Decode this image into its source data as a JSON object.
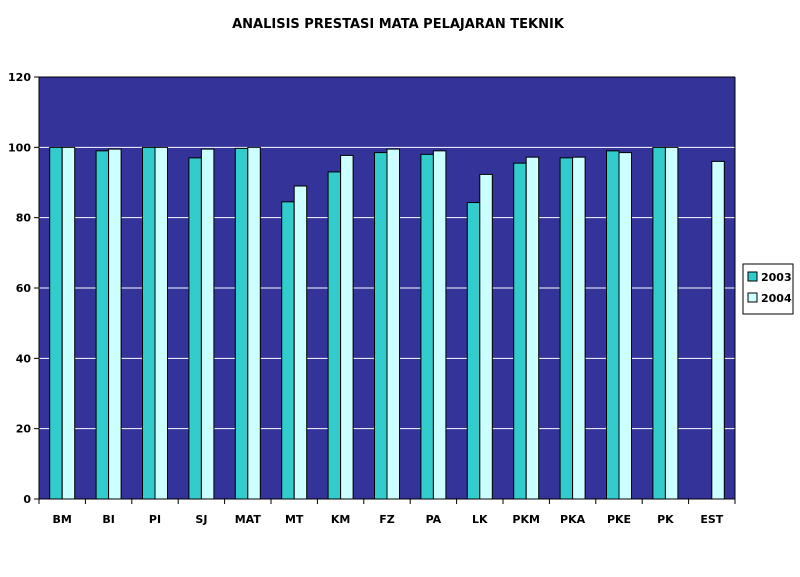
{
  "chart_data": {
    "type": "bar",
    "title": "ANALISIS PRESTASI MATA PELAJARAN TEKNIK",
    "xlabel": "",
    "ylabel": "",
    "ylim": [
      0,
      120
    ],
    "yticks": [
      0,
      20,
      40,
      60,
      80,
      100,
      120
    ],
    "grid": true,
    "legend_position": "right",
    "categories": [
      "BM",
      "BI",
      "PI",
      "SJ",
      "MAT",
      "MT",
      "KM",
      "FZ",
      "PA",
      "LK",
      "PKM",
      "PKA",
      "PKE",
      "PK",
      "EST"
    ],
    "series": [
      {
        "name": "2003",
        "color": "#33CCCC",
        "values": [
          100,
          99,
          100,
          97,
          99.7,
          84.5,
          93,
          98.5,
          98,
          84.3,
          95.5,
          97,
          99,
          100,
          null
        ]
      },
      {
        "name": "2004",
        "color": "#CCFFFF",
        "values": [
          100,
          99.5,
          100,
          99.5,
          100,
          89,
          97.7,
          99.5,
          99,
          92.3,
          97.2,
          97.2,
          98.5,
          100,
          96
        ]
      }
    ],
    "colors": {
      "plot_background": "#333399",
      "gridline": "#ffffff",
      "bar_outline": "#000000"
    }
  }
}
